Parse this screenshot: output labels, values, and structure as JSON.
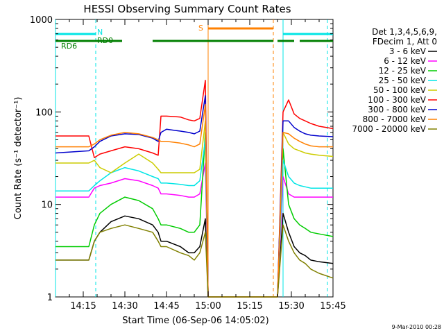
{
  "chart_data": {
    "type": "line",
    "title": "HESSI Observing Summary Count Rates",
    "xlabel": "Start Time (06-Sep-06 14:05:02)",
    "ylabel": "Count Rate (s⁻¹ detector⁻¹)",
    "yscale": "log",
    "ylim": [
      1,
      1000
    ],
    "xlim_minutes": [
      0,
      100
    ],
    "x_ticks": [
      "14:15",
      "14:30",
      "14:45",
      "15:00",
      "15:15",
      "15:30",
      "15:45"
    ],
    "y_ticks": [
      "1",
      "10",
      "100",
      "1000"
    ],
    "legend": {
      "placement": "right",
      "header": [
        "Det 1,3,4,5,6,9,",
        "FDecim 1, Att 0"
      ]
    },
    "footer_date": "9-Mar-2010 00:28",
    "annotations": {
      "n_label": "N",
      "s_label": "S",
      "rd0_label": "RD0",
      "rd6_label": "RD6"
    },
    "series": [
      {
        "name": "3 - 6 keV",
        "color": "#000000",
        "x": [
          0,
          12,
          14,
          16,
          20,
          25,
          30,
          35,
          37,
          38,
          40,
          45,
          48,
          50,
          52,
          54,
          55,
          80,
          82,
          84,
          86,
          88,
          90,
          92,
          95,
          100
        ],
        "y": [
          2.5,
          2.5,
          4,
          5,
          6.5,
          7.5,
          7,
          6,
          5,
          4,
          4,
          3.5,
          3,
          3,
          3.5,
          7,
          1,
          1,
          8,
          5,
          3.5,
          3,
          2.8,
          2.5,
          2.4,
          2.3
        ]
      },
      {
        "name": "6 - 12 keV",
        "color": "#ff00ff",
        "x": [
          0,
          12,
          14,
          16,
          20,
          25,
          30,
          35,
          37,
          38,
          40,
          45,
          48,
          50,
          52,
          54,
          55,
          80,
          82,
          84,
          86,
          88,
          90,
          92,
          95,
          100
        ],
        "y": [
          12,
          12,
          15,
          16,
          17,
          19,
          18,
          16,
          15,
          13,
          13,
          12.5,
          12,
          12,
          13,
          28,
          1,
          1,
          20,
          13,
          12,
          12,
          12,
          12,
          12,
          12
        ]
      },
      {
        "name": "12 - 25 keV",
        "color": "#00cc00",
        "x": [
          0,
          12,
          14,
          16,
          20,
          25,
          30,
          35,
          37,
          38,
          40,
          45,
          48,
          50,
          52,
          54,
          55,
          80,
          82,
          84,
          86,
          88,
          90,
          92,
          95,
          100
        ],
        "y": [
          3.5,
          3.5,
          6,
          8,
          10,
          12,
          11,
          9,
          7,
          6,
          6,
          5.5,
          5,
          5,
          6,
          60,
          1,
          1,
          40,
          10,
          7,
          6,
          5.5,
          5,
          4.8,
          4.5
        ]
      },
      {
        "name": "25 - 50 keV",
        "color": "#00e5e5",
        "x": [
          0,
          12,
          14,
          16,
          20,
          25,
          30,
          35,
          37,
          38,
          40,
          45,
          48,
          50,
          52,
          54,
          55,
          80,
          82,
          84,
          86,
          88,
          90,
          92,
          95,
          100
        ],
        "y": [
          14,
          14,
          16,
          18,
          22,
          25,
          23,
          20,
          19,
          17,
          17,
          16.5,
          16,
          16,
          18,
          50,
          1,
          1,
          30,
          20,
          17,
          16,
          15.5,
          15,
          15,
          15
        ]
      },
      {
        "name": "50 - 100 keV",
        "color": "#cccc00",
        "x": [
          0,
          12,
          14,
          16,
          20,
          25,
          30,
          35,
          37,
          38,
          40,
          45,
          48,
          50,
          52,
          54,
          55,
          80,
          82,
          84,
          86,
          88,
          90,
          92,
          95,
          100
        ],
        "y": [
          28,
          28,
          30,
          25,
          22,
          28,
          35,
          28,
          24,
          22,
          22,
          22,
          22,
          22,
          24,
          80,
          1,
          1,
          60,
          45,
          40,
          38,
          36,
          35,
          34,
          33
        ]
      },
      {
        "name": "100 - 300 keV",
        "color": "#ff0000",
        "x": [
          0,
          12,
          14,
          16,
          20,
          25,
          30,
          35,
          37,
          38,
          40,
          45,
          48,
          50,
          52,
          54,
          55,
          80,
          82,
          84,
          86,
          88,
          90,
          92,
          95,
          100
        ],
        "y": [
          55,
          55,
          32,
          35,
          38,
          42,
          40,
          36,
          34,
          90,
          90,
          88,
          82,
          80,
          85,
          220,
          1,
          1,
          100,
          135,
          95,
          85,
          80,
          75,
          70,
          66
        ]
      },
      {
        "name": "300 - 800 keV",
        "color": "#0000cc",
        "x": [
          0,
          12,
          14,
          16,
          20,
          25,
          30,
          35,
          37,
          38,
          40,
          45,
          48,
          50,
          52,
          54,
          55,
          80,
          82,
          84,
          86,
          88,
          90,
          92,
          95,
          100
        ],
        "y": [
          36,
          38,
          42,
          48,
          55,
          58,
          57,
          52,
          48,
          60,
          65,
          62,
          60,
          58,
          62,
          150,
          1,
          1,
          80,
          80,
          68,
          62,
          58,
          56,
          55,
          54
        ]
      },
      {
        "name": "800 - 7000 keV",
        "color": "#ff8000",
        "x": [
          0,
          12,
          14,
          16,
          20,
          25,
          30,
          35,
          37,
          38,
          40,
          45,
          48,
          50,
          52,
          54,
          55,
          80,
          82,
          84,
          86,
          88,
          90,
          92,
          95,
          100
        ],
        "y": [
          42,
          42,
          45,
          50,
          56,
          60,
          58,
          53,
          50,
          48,
          48,
          46,
          44,
          42,
          45,
          120,
          1,
          1,
          60,
          58,
          52,
          48,
          45,
          43,
          42,
          42
        ]
      },
      {
        "name": "7000 - 20000 keV",
        "color": "#808000",
        "x": [
          0,
          12,
          14,
          16,
          20,
          25,
          30,
          35,
          37,
          38,
          40,
          45,
          48,
          50,
          52,
          54,
          55,
          80,
          82,
          84,
          86,
          88,
          90,
          92,
          95,
          100
        ],
        "y": [
          2.5,
          2.5,
          4,
          5,
          5.5,
          6,
          5.5,
          5,
          4,
          3.5,
          3.5,
          3,
          2.8,
          2.5,
          3,
          5,
          1,
          1,
          6,
          4,
          3,
          2.5,
          2.3,
          2,
          1.8,
          1.6
        ]
      }
    ]
  }
}
